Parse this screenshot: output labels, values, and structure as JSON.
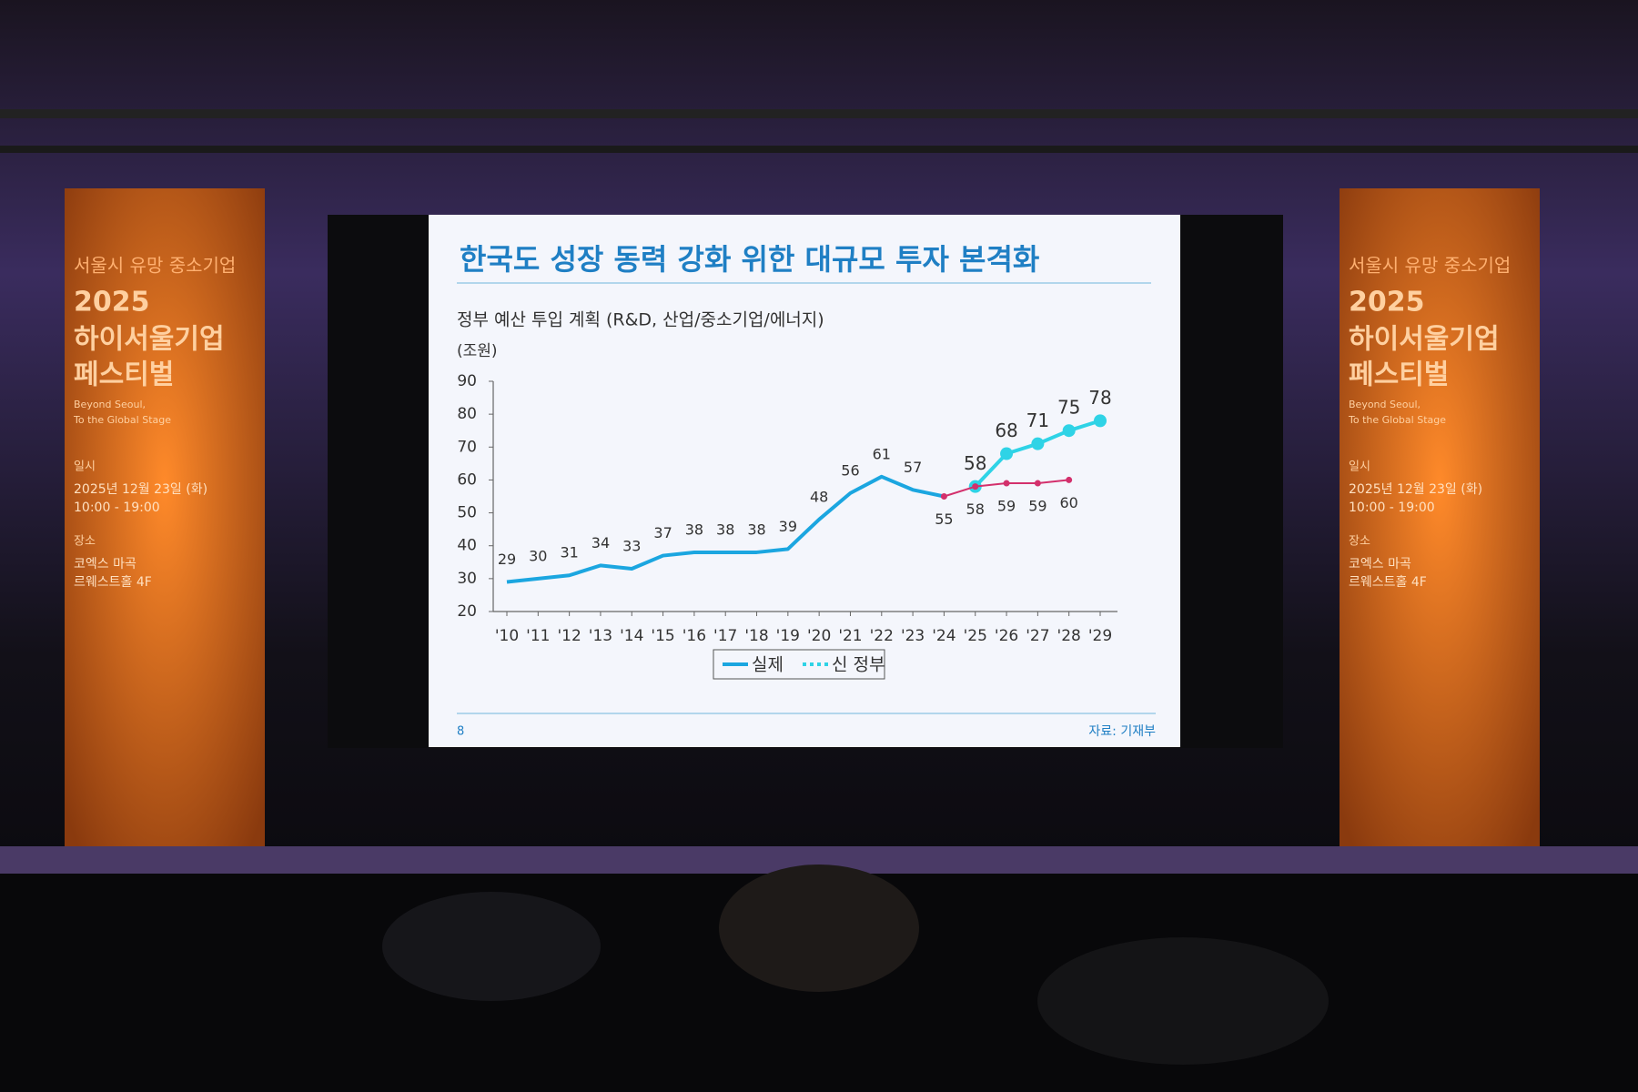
{
  "chart_data": {
    "type": "line",
    "title": "한국도 성장 동력 강화 위한 대규모 투자 본격화",
    "subtitle": "정부 예산 투입 계획 (R&D, 산업/중소기업/에너지)",
    "y_label": "(조원)",
    "page_number": "8",
    "source": "자료: 기재부",
    "categories": [
      "'10",
      "'11",
      "'12",
      "'13",
      "'14",
      "'15",
      "'16",
      "'17",
      "'18",
      "'19",
      "'20",
      "'21",
      "'22",
      "'23",
      "'24",
      "'25",
      "'26",
      "'27",
      "'28",
      "'29"
    ],
    "series": [
      {
        "name": "실제",
        "color": "#1ba6e0",
        "markers": false,
        "values": [
          29,
          30,
          31,
          34,
          33,
          37,
          38,
          38,
          38,
          39,
          48,
          56,
          61,
          57,
          55,
          null,
          null,
          null,
          null,
          null
        ]
      },
      {
        "name": "신 정부",
        "color": "#2fd3e6",
        "markers": true,
        "values": [
          null,
          null,
          null,
          null,
          null,
          null,
          null,
          null,
          null,
          null,
          null,
          null,
          null,
          null,
          null,
          58,
          68,
          71,
          75,
          78
        ]
      },
      {
        "color": "#d3306c",
        "markers": true,
        "values": [
          null,
          null,
          null,
          null,
          null,
          null,
          null,
          null,
          null,
          null,
          null,
          null,
          null,
          null,
          55,
          58,
          59,
          59,
          60,
          null
        ]
      }
    ],
    "ylim": [
      20,
      90
    ],
    "yticks": [
      20,
      30,
      40,
      50,
      60,
      70,
      80,
      90
    ],
    "grid": false
  },
  "banner": {
    "top": "서울시 유망 중소기업",
    "year": "2025",
    "name_1": "하이서울기업",
    "name_2": "페스티벌",
    "slogan_1": "Beyond Seoul,",
    "slogan_2": "To the Global Stage",
    "date_label": "일시",
    "date": "2025년 12월 23일 (화)",
    "time": "10:00 - 19:00",
    "place_label": "장소",
    "place_1": "코엑스 마곡",
    "place_2": "르웨스트홀 4F"
  }
}
